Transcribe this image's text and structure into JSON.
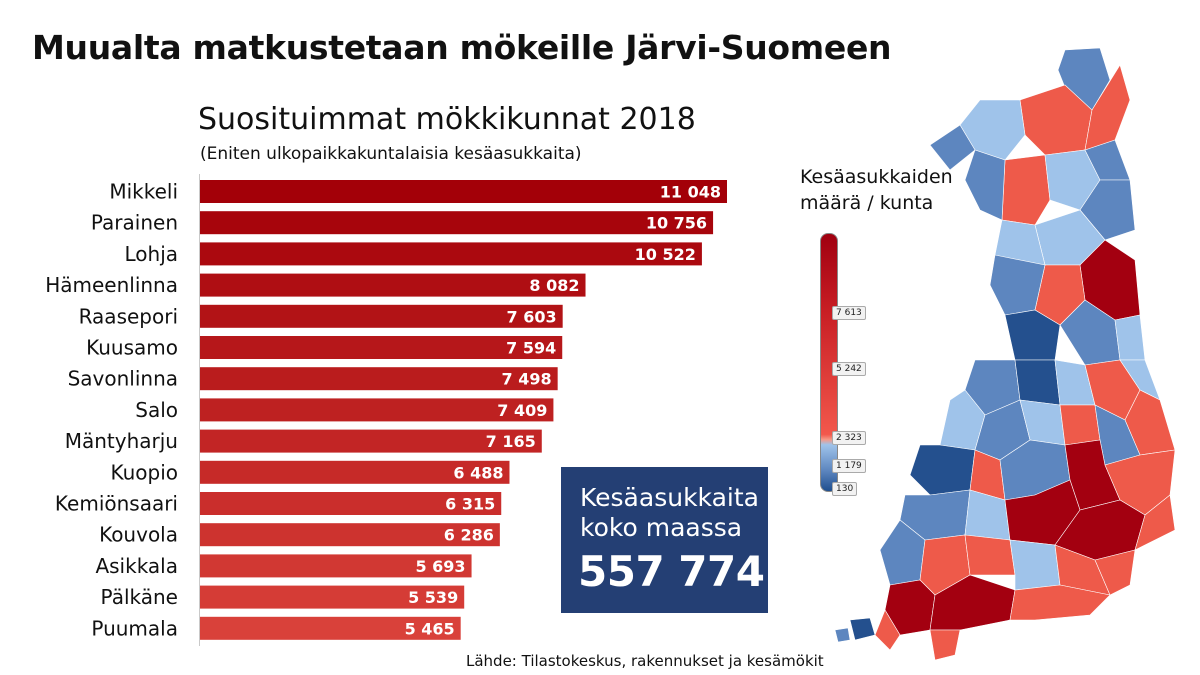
{
  "header": {
    "title": "Muualta matkustetaan mökeille Järvi-Suomeen",
    "subtitle": "Suosituimmat mökkikunnat 2018",
    "note": "(Eniten ulkopaikkakuntalaisia kesäasukkaita)"
  },
  "chart_data": {
    "type": "bar",
    "orientation": "horizontal",
    "title": "Suosituimmat mökkikunnat 2018",
    "subtitle": "(Eniten ulkopaikkakuntalaisia kesäasukkaita)",
    "categories": [
      "Mikkeli",
      "Parainen",
      "Lohja",
      "Hämeenlinna",
      "Raasepori",
      "Kuusamo",
      "Savonlinna",
      "Salo",
      "Mäntyharju",
      "Kuopio",
      "Kemiönsaari",
      "Kouvola",
      "Asikkala",
      "Pälkäne",
      "Puumala"
    ],
    "values": [
      11048,
      10756,
      10522,
      8082,
      7603,
      7594,
      7498,
      7409,
      7165,
      6488,
      6315,
      6286,
      5693,
      5539,
      5465
    ],
    "value_labels": [
      "11 048",
      "10 756",
      "10 522",
      "8 082",
      "7 603",
      "7 594",
      "7 498",
      "7 409",
      "7 165",
      "6 488",
      "6 315",
      "6 286",
      "5 693",
      "5 539",
      "5 465"
    ],
    "xlim": [
      0,
      11048
    ],
    "grid": false,
    "colors": {
      "high": "#a30008",
      "low": "#d9413a",
      "label": "#ffffff"
    }
  },
  "total": {
    "label": "Kesäasukkaita koko maassa",
    "value": "557 774",
    "color": "#243f74"
  },
  "legend": {
    "title": "Kesäasukkaiden määrä / kunta",
    "ticks": [
      "7 613",
      "5 242",
      "2 323",
      "1 179",
      "130"
    ]
  },
  "map": {
    "description_colors": {
      "red_dark": "#a30010",
      "red": "#ee5a4a",
      "blue_light": "#9fc3ea",
      "blue": "#5d86bf",
      "blue_dark": "#24508e"
    }
  },
  "source": "Lähde: Tilastokeskus, rakennukset ja kesämökit"
}
